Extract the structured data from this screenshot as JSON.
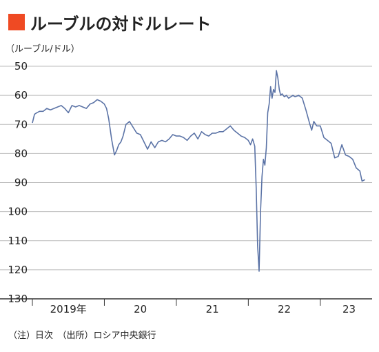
{
  "chart_data": {
    "type": "line",
    "title": "ルーブルの対ドルレート",
    "unit_label": "（ルーブル/ドル）",
    "footnote": "（注）日次　（出所）ロシア中央銀行",
    "y_axis": {
      "inverted": true,
      "ylim": [
        50,
        130
      ],
      "ticks": [
        "50",
        "60",
        "70",
        "80",
        "90",
        "100",
        "110",
        "120",
        "130"
      ]
    },
    "x_axis": {
      "xlim": [
        2019.0,
        2023.72
      ],
      "ticks": [
        2020,
        2021,
        2022,
        2023
      ],
      "tick_labels": [
        {
          "label": "2019年",
          "at": 2019.5
        },
        {
          "label": "20",
          "at": 2020.5
        },
        {
          "label": "21",
          "at": 2021.5
        },
        {
          "label": "22",
          "at": 2022.5
        },
        {
          "label": "23",
          "at": 2023.4
        }
      ]
    },
    "grid": "horizontal",
    "colors": {
      "line": "#5b73a6",
      "title_marker": "#ef4a23",
      "grid": "#bbbbbb",
      "axis": "#333333"
    },
    "series": [
      {
        "x": [
          2019.0,
          2019.03,
          2019.06,
          2019.1,
          2019.15,
          2019.2,
          2019.25,
          2019.3,
          2019.35,
          2019.4,
          2019.45,
          2019.5,
          2019.55,
          2019.6,
          2019.65,
          2019.7,
          2019.75,
          2019.8,
          2019.85,
          2019.9,
          2019.95,
          2020.0,
          2020.03,
          2020.06,
          2020.1,
          2020.14,
          2020.17,
          2020.2,
          2020.23,
          2020.26,
          2020.3,
          2020.35,
          2020.4,
          2020.45,
          2020.5,
          2020.55,
          2020.6,
          2020.65,
          2020.7,
          2020.75,
          2020.8,
          2020.85,
          2020.9,
          2020.95,
          2021.0,
          2021.05,
          2021.1,
          2021.15,
          2021.2,
          2021.25,
          2021.3,
          2021.35,
          2021.4,
          2021.45,
          2021.5,
          2021.55,
          2021.6,
          2021.65,
          2021.7,
          2021.75,
          2021.8,
          2021.85,
          2021.9,
          2021.95,
          2022.0,
          2022.03,
          2022.06,
          2022.09,
          2022.11,
          2022.13,
          2022.15,
          2022.17,
          2022.19,
          2022.21,
          2022.23,
          2022.25,
          2022.27,
          2022.29,
          2022.31,
          2022.33,
          2022.35,
          2022.37,
          2022.39,
          2022.41,
          2022.43,
          2022.45,
          2022.47,
          2022.5,
          2022.53,
          2022.56,
          2022.59,
          2022.62,
          2022.65,
          2022.7,
          2022.75,
          2022.8,
          2022.85,
          2022.88,
          2022.91,
          2022.95,
          2023.0,
          2023.05,
          2023.1,
          2023.15,
          2023.2,
          2023.25,
          2023.3,
          2023.35,
          2023.4,
          2023.45,
          2023.5,
          2023.55,
          2023.58,
          2023.62
        ],
        "y": [
          69.5,
          66.5,
          66.0,
          65.5,
          65.5,
          64.5,
          65.0,
          64.5,
          64.0,
          63.5,
          64.5,
          66.0,
          63.5,
          64.0,
          63.5,
          64.0,
          64.5,
          63.0,
          62.5,
          61.5,
          62.0,
          63.0,
          64.5,
          68.0,
          75.0,
          80.5,
          79.0,
          77.0,
          76.0,
          74.0,
          70.0,
          69.0,
          71.0,
          73.0,
          73.5,
          76.0,
          78.5,
          76.0,
          78.0,
          76.0,
          75.5,
          76.0,
          75.0,
          73.5,
          74.0,
          74.0,
          74.5,
          75.5,
          74.0,
          73.0,
          75.0,
          72.5,
          73.5,
          74.0,
          73.0,
          73.0,
          72.5,
          72.5,
          71.5,
          70.5,
          72.0,
          73.0,
          74.0,
          74.5,
          75.5,
          77.0,
          75.0,
          77.5,
          92.0,
          112.0,
          120.5,
          100.0,
          88.0,
          82.0,
          84.0,
          78.0,
          66.0,
          63.0,
          57.0,
          61.0,
          58.0,
          59.0,
          51.5,
          54.0,
          58.0,
          60.0,
          59.5,
          60.5,
          60.0,
          61.0,
          60.5,
          60.0,
          60.5,
          60.0,
          61.0,
          65.0,
          69.5,
          72.0,
          69.0,
          70.5,
          70.5,
          74.5,
          75.5,
          76.5,
          81.5,
          81.0,
          77.0,
          80.5,
          81.0,
          82.0,
          85.0,
          86.0,
          89.5,
          89.0
        ]
      }
    ]
  }
}
